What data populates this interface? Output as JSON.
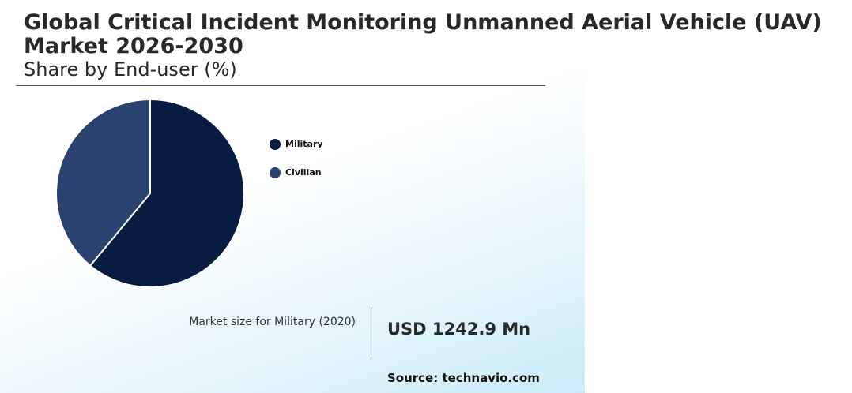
{
  "header": {
    "title": "Global Critical Incident Monitoring Unmanned Aerial Vehicle (UAV) Market 2026-2030",
    "subtitle": "Share by End-user (%)"
  },
  "chart_data": {
    "type": "pie",
    "categories": [
      "Military",
      "Civilian"
    ],
    "values": [
      61,
      39
    ],
    "colors": [
      "#081c42",
      "#2b4170"
    ],
    "legend_position": "right",
    "start_angle": "12 o'clock, clockwise"
  },
  "callout": {
    "label": "Market size for Military (2020)",
    "value": "USD 1242.9 Mn"
  },
  "footer": {
    "source": "Source: technavio.com"
  }
}
